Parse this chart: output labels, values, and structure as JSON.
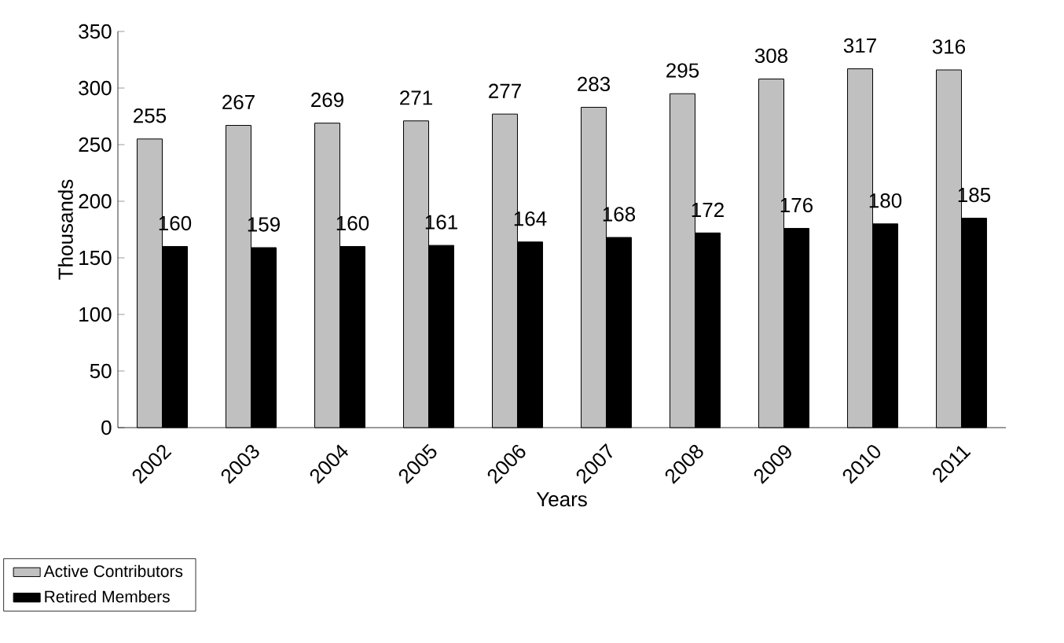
{
  "chart_data": {
    "type": "bar",
    "xlabel": "Years",
    "ylabel": "Thousands",
    "categories": [
      "2002",
      "2003",
      "2004",
      "2005",
      "2006",
      "2007",
      "2008",
      "2009",
      "2010",
      "2011"
    ],
    "series": [
      {
        "name": "Active Contributors",
        "color": "#c0c0c0",
        "values": [
          255,
          267,
          269,
          271,
          277,
          283,
          295,
          308,
          317,
          316
        ]
      },
      {
        "name": "Retired Members",
        "color": "#000000",
        "values": [
          160,
          159,
          160,
          161,
          164,
          168,
          172,
          176,
          180,
          185
        ]
      }
    ],
    "ylim": [
      0,
      350
    ],
    "yticks": [
      0,
      50,
      100,
      150,
      200,
      250,
      300,
      350
    ],
    "data_labels": true,
    "legend": "bottom left",
    "grid": false
  }
}
